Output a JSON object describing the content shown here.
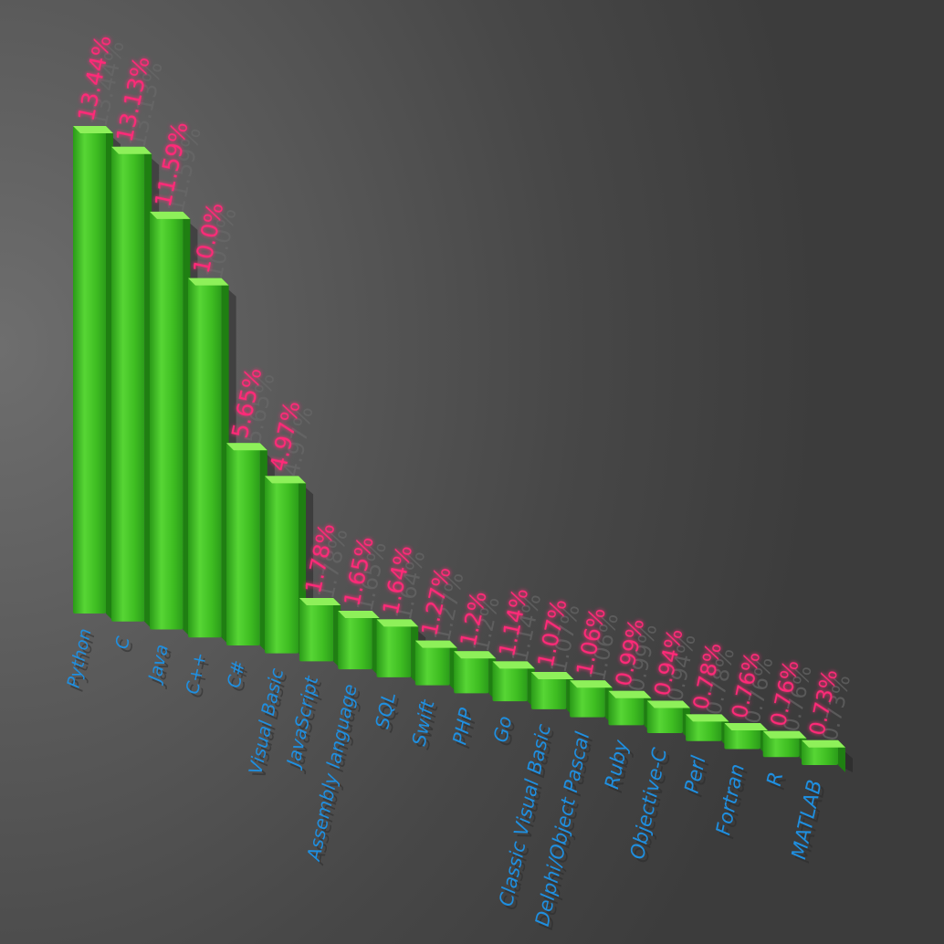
{
  "chart_data": {
    "type": "bar",
    "categories": [
      "Python",
      "C",
      "Java",
      "C++",
      "C#",
      "Visual Basic",
      "JavaScript",
      "Assembly language",
      "SQL",
      "Swift",
      "PHP",
      "Go",
      "Classic Visual Basic",
      "Delphi/Object Pascal",
      "Ruby",
      "Objective-C",
      "Perl",
      "Fortran",
      "R",
      "MATLAB"
    ],
    "values": [
      13.44,
      13.13,
      11.59,
      10.0,
      5.65,
      4.97,
      1.78,
      1.65,
      1.64,
      1.27,
      1.2,
      1.14,
      1.07,
      1.06,
      0.99,
      0.94,
      0.78,
      0.76,
      0.76,
      0.73
    ],
    "value_labels": [
      "13.44%",
      "13.13%",
      "11.59%",
      "10.0%",
      "5.65%",
      "4.97%",
      "1.78%",
      "1.65%",
      "1.64%",
      "1.27%",
      "1.2%",
      "1.14%",
      "1.07%",
      "1.06%",
      "0.99%",
      "0.94%",
      "0.78%",
      "0.76%",
      "0.76%",
      "0.73%"
    ],
    "title": "",
    "xlabel": "",
    "ylabel": "",
    "ylim": [
      0,
      13.44
    ],
    "grid": false,
    "legend": "none",
    "colors": {
      "bar": "#3cc420",
      "bar_top": "#8ef05a",
      "value_label": "#ff2a78",
      "category_label": "#1f8fe0",
      "background": "#4a4a4a"
    }
  }
}
